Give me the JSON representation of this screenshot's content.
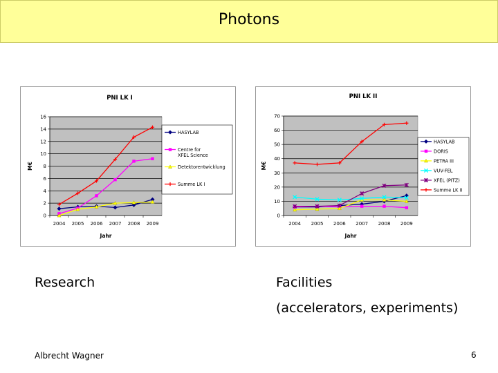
{
  "slide": {
    "title": "Photons",
    "left_label": "Research",
    "right_label": "Facilities",
    "right_sublabel": "(accelerators, experiments)",
    "author": "Albrecht Wagner",
    "page_number": "6"
  },
  "colors": {
    "title_bar": "#ffff99",
    "plot_bg": "#c0c0c0"
  },
  "chart_data": [
    {
      "type": "line",
      "title": "PNI LK I",
      "xlabel": "Jahr",
      "ylabel": "M€",
      "ylim": [
        0,
        16
      ],
      "yticks": [
        0,
        2,
        4,
        6,
        8,
        10,
        12,
        14,
        16
      ],
      "x": [
        "2004",
        "2005",
        "2006",
        "2007",
        "2008",
        "2009"
      ],
      "legend_position": "right",
      "series": [
        {
          "name": "HASYLAB",
          "color": "#000080",
          "marker": "diamond",
          "values": [
            1.1,
            1.4,
            1.5,
            1.3,
            1.7,
            2.6
          ]
        },
        {
          "name": "Centre for XFEL Science",
          "color": "#ff00ff",
          "marker": "square",
          "values": [
            0.3,
            1.2,
            3.2,
            5.8,
            8.8,
            9.2
          ]
        },
        {
          "name": "Detektorentwicklung",
          "color": "#ffff00",
          "marker": "triangle",
          "values": [
            0.0,
            1.0,
            1.4,
            2.0,
            2.1,
            2.2
          ]
        },
        {
          "name": "Summe LK I",
          "color": "#ff0000",
          "marker": "plus",
          "values": [
            1.8,
            3.6,
            5.6,
            9.1,
            12.7,
            14.3
          ]
        }
      ]
    },
    {
      "type": "line",
      "title": "PNI LK II",
      "xlabel": "Jahr",
      "ylabel": "M€",
      "ylim": [
        0,
        70
      ],
      "yticks": [
        0,
        10,
        20,
        30,
        40,
        50,
        60,
        70
      ],
      "x": [
        "2004",
        "2005",
        "2006",
        "2007",
        "2008",
        "2009"
      ],
      "legend_position": "right",
      "series": [
        {
          "name": "HASYLAB",
          "color": "#000080",
          "marker": "diamond",
          "values": [
            6,
            6,
            7,
            8,
            10,
            14
          ]
        },
        {
          "name": "DORIS",
          "color": "#ff00ff",
          "marker": "square",
          "values": [
            6,
            6.5,
            6,
            6.5,
            6.5,
            5.5
          ]
        },
        {
          "name": "PETRA III",
          "color": "#ffff00",
          "marker": "triangle",
          "values": [
            4,
            4.5,
            5,
            11,
            11,
            10
          ]
        },
        {
          "name": "VUV-FEL",
          "color": "#00ffff",
          "marker": "x",
          "values": [
            13,
            11.5,
            11,
            12,
            13,
            12.5
          ]
        },
        {
          "name": "XFEL (PITZ)",
          "color": "#800080",
          "marker": "star",
          "values": [
            6.5,
            6.5,
            7,
            15.5,
            21,
            21.5
          ]
        },
        {
          "name": "Summe LK II",
          "color": "#ff0000",
          "marker": "plus",
          "values": [
            37,
            36,
            37,
            52,
            64,
            65
          ]
        }
      ]
    }
  ]
}
